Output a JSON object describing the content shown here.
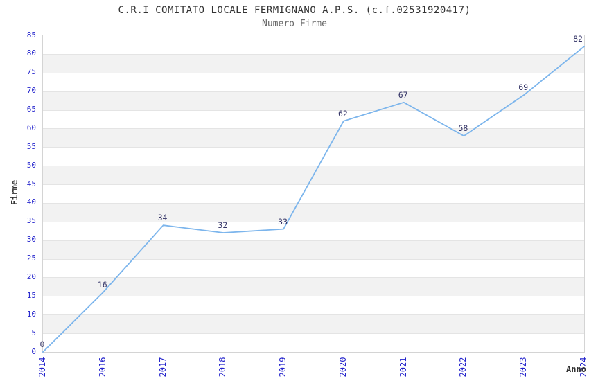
{
  "chart_data": {
    "type": "line",
    "title": "C.R.I COMITATO LOCALE FERMIGNANO A.P.S. (c.f.02531920417)",
    "subtitle": "Numero Firme",
    "xlabel": "Anno",
    "ylabel": "Firme",
    "categories": [
      "2014",
      "2016",
      "2017",
      "2018",
      "2019",
      "2020",
      "2021",
      "2022",
      "2023",
      "2024"
    ],
    "values": [
      0,
      16,
      34,
      32,
      33,
      62,
      67,
      58,
      69,
      82
    ],
    "ylim": [
      0,
      85
    ],
    "ytick_step": 5,
    "grid": true,
    "legend": "none",
    "band_pattern": "alternating horizontal bands of 5 units, gray from 5-10 up to 75-80",
    "colors": {
      "line": "#7cb5ec",
      "axis_tick_label": "#2323cc",
      "data_label": "#333366",
      "title": "#333333",
      "subtitle": "#666666",
      "axis_title": "#333333",
      "band": "#f2f2f2",
      "gridline": "#e4e4e4",
      "plot_border": "#d4d4d4",
      "background": "#ffffff"
    }
  }
}
